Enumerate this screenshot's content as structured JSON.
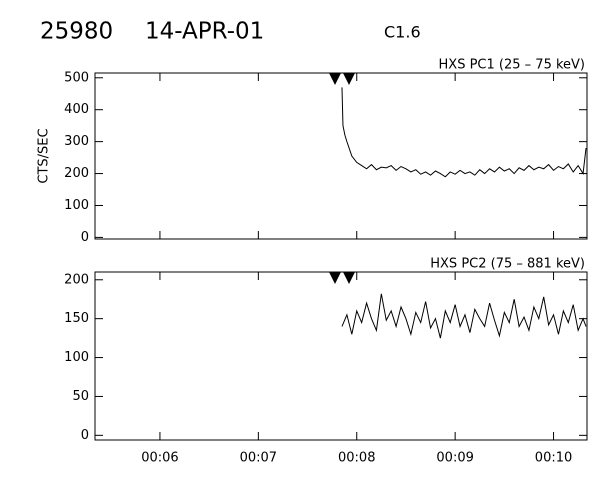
{
  "header": {
    "id": "25980",
    "date": "14-APR-01",
    "class": "C1.6"
  },
  "chart_data": [
    {
      "type": "line",
      "title": "HXS PC1 (25 – 75 keV)",
      "ylabel": "CTS/SEC",
      "color": "#000000",
      "x": [
        7.85,
        7.86,
        7.88,
        7.9,
        7.95,
        8,
        8.05,
        8.1,
        8.15,
        8.2,
        8.25,
        8.3,
        8.35,
        8.4,
        8.45,
        8.5,
        8.55,
        8.6,
        8.65,
        8.7,
        8.75,
        8.8,
        8.85,
        8.9,
        8.95,
        9,
        9.05,
        9.1,
        9.15,
        9.2,
        9.25,
        9.3,
        9.35,
        9.4,
        9.45,
        9.5,
        9.55,
        9.6,
        9.65,
        9.7,
        9.75,
        9.8,
        9.85,
        9.9,
        9.95,
        10,
        10.05,
        10.1,
        10.15,
        10.2,
        10.25,
        10.3,
        10.33
      ],
      "values": [
        470,
        350,
        320,
        300,
        255,
        235,
        225,
        215,
        228,
        212,
        220,
        218,
        225,
        210,
        222,
        215,
        205,
        212,
        198,
        205,
        195,
        208,
        200,
        190,
        205,
        198,
        210,
        200,
        205,
        195,
        212,
        200,
        215,
        205,
        220,
        208,
        215,
        200,
        218,
        210,
        225,
        212,
        220,
        215,
        228,
        210,
        222,
        215,
        230,
        205,
        225,
        200,
        280
      ],
      "xlim": [
        5.34,
        10.34
      ],
      "xticks": [
        6,
        7,
        8,
        9,
        10
      ],
      "ylim": [
        -5,
        515
      ],
      "yticks": [
        0,
        100,
        200,
        300,
        400,
        500
      ]
    },
    {
      "type": "line",
      "title": "HXS PC2 (75 – 881 keV)",
      "color": "#000000",
      "x": [
        7.85,
        7.9,
        7.95,
        8,
        8.05,
        8.1,
        8.15,
        8.2,
        8.25,
        8.3,
        8.35,
        8.4,
        8.45,
        8.5,
        8.55,
        8.6,
        8.65,
        8.7,
        8.75,
        8.8,
        8.85,
        8.9,
        8.95,
        9,
        9.05,
        9.1,
        9.15,
        9.2,
        9.25,
        9.3,
        9.35,
        9.4,
        9.45,
        9.5,
        9.55,
        9.6,
        9.65,
        9.7,
        9.75,
        9.8,
        9.85,
        9.9,
        9.95,
        10,
        10.05,
        10.1,
        10.15,
        10.2,
        10.25,
        10.3,
        10.33
      ],
      "values": [
        140,
        155,
        130,
        160,
        145,
        170,
        150,
        135,
        182,
        148,
        160,
        140,
        165,
        150,
        130,
        158,
        145,
        172,
        138,
        150,
        125,
        160,
        145,
        168,
        140,
        155,
        132,
        162,
        150,
        140,
        170,
        148,
        128,
        158,
        145,
        175,
        140,
        152,
        135,
        165,
        150,
        178,
        142,
        155,
        130,
        160,
        145,
        168,
        135,
        150,
        140
      ],
      "xlim": [
        5.34,
        10.34
      ],
      "xticks": [
        {
          "value": 6,
          "label": "00:06"
        },
        {
          "value": 7,
          "label": "00:07"
        },
        {
          "value": 8,
          "label": "00:08"
        },
        {
          "value": 9,
          "label": "00:09"
        },
        {
          "value": 10,
          "label": "00:10"
        }
      ],
      "ylim": [
        -6,
        210
      ],
      "yticks": [
        0,
        50,
        100,
        150,
        200
      ]
    }
  ]
}
